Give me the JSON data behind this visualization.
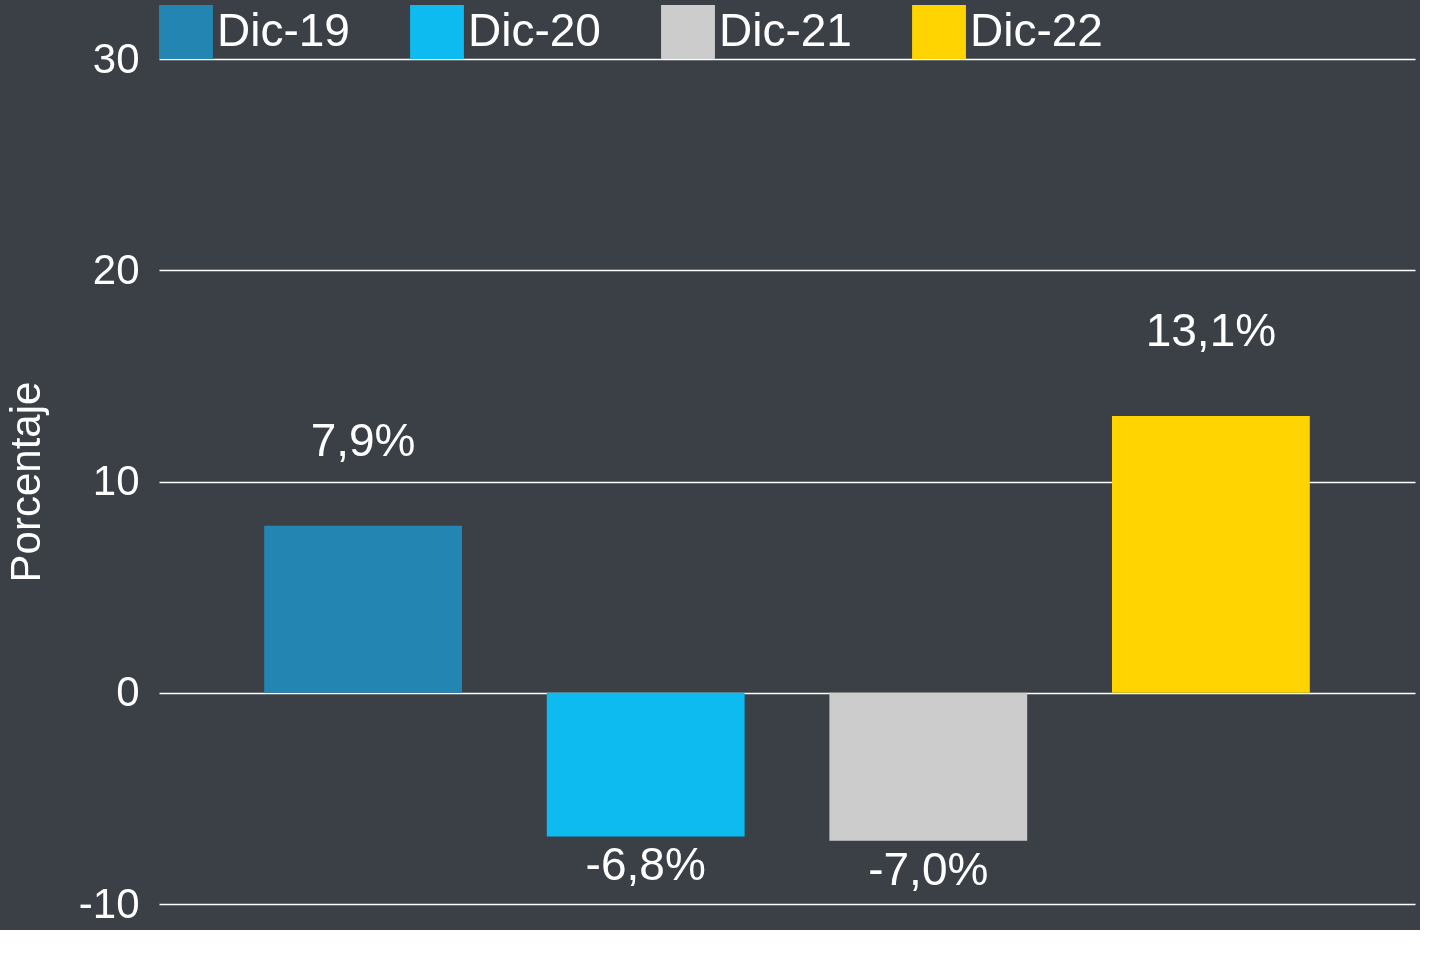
{
  "chart_data": {
    "type": "bar",
    "ylabel": "Porcentaje",
    "categories": [
      null
    ],
    "series": [
      {
        "name": "Dic-19",
        "color": "#2386b2",
        "values": [
          7.9
        ],
        "value_labels": [
          "7,9%"
        ]
      },
      {
        "name": "Dic-20",
        "color": "#0dbbf0",
        "values": [
          -6.8
        ],
        "value_labels": [
          "-6,8%"
        ]
      },
      {
        "name": "Dic-21",
        "color": "#cccccc",
        "values": [
          -7.0
        ],
        "value_labels": [
          "-7,0%"
        ]
      },
      {
        "name": "Dic-22",
        "color": "#ffd400",
        "values": [
          13.1
        ],
        "value_labels": [
          "13,1%"
        ]
      }
    ],
    "ylim": [
      -10,
      30
    ],
    "yticks": [
      -10,
      0,
      10,
      20,
      30
    ],
    "grid": "y",
    "legend": "top"
  }
}
